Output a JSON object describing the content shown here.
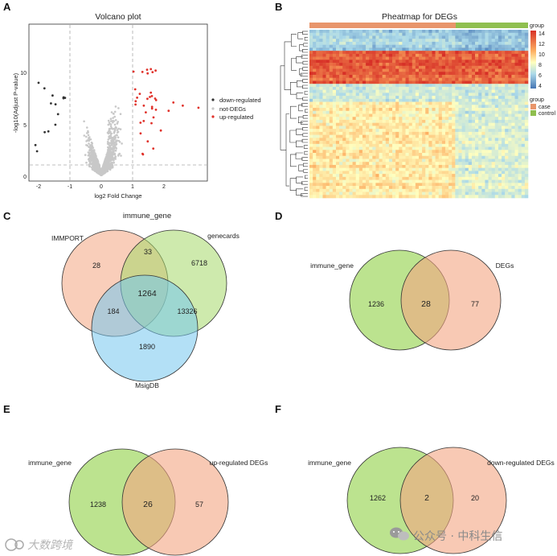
{
  "panels": {
    "a": {
      "label": "A"
    },
    "b": {
      "label": "B"
    },
    "c": {
      "label": "C"
    },
    "d": {
      "label": "D"
    },
    "e": {
      "label": "E"
    },
    "f": {
      "label": "F"
    }
  },
  "volcano": {
    "title": "Volcano plot",
    "xlabel": "log2 Fold Change",
    "ylabel": "-log10(Adjust P-value)",
    "xticks": [
      "-2",
      "-1",
      "0",
      "1",
      "2"
    ],
    "yticks": [
      "0",
      "5",
      "10"
    ],
    "legend": [
      "down-regulated",
      "not-DEGs",
      "up-regulated"
    ],
    "colors": {
      "down": "#333333",
      "not": "#c8c8c8",
      "up": "#e0322b"
    }
  },
  "heatmap": {
    "title": "Pheatmap for DEGs",
    "legend_title": "group",
    "scale_ticks": [
      "14",
      "12",
      "10",
      "8",
      "6",
      "4"
    ],
    "group_legend_title": "group",
    "groups": [
      "case",
      "control"
    ],
    "colors": {
      "case": "#e8956b",
      "control": "#8fbf4f",
      "high": "#d73027",
      "mid": "#ffffbf",
      "low": "#4575b4"
    }
  },
  "venn_c": {
    "title": "immune_gene",
    "sets": [
      "IMMPORT",
      "genecards",
      "MsigDB"
    ],
    "values": {
      "immport_only": "28",
      "immport_genecards": "33",
      "genecards_only": "6718",
      "all_three": "1264",
      "immport_msigdb": "184",
      "genecards_msigdb": "13326",
      "msigdb_only": "1890"
    },
    "colors": {
      "immport": "#f4a582",
      "genecards": "#a6d96a",
      "msigdb": "#74c6ee"
    }
  },
  "venn_d": {
    "left_label": "immune_gene",
    "right_label": "DEGs",
    "left": "1236",
    "overlap": "28",
    "right": "77"
  },
  "venn_e": {
    "left_label": "immune_gene",
    "right_label": "up-regulated DEGs",
    "left": "1238",
    "overlap": "26",
    "right": "57"
  },
  "venn_f": {
    "left_label": "immune_gene",
    "right_label": "down-regulated DEGs",
    "left": "1262",
    "overlap": "2",
    "right": "20"
  },
  "venn_colors": {
    "green": "#a6d96a",
    "orange": "#f4a582"
  },
  "watermark": {
    "left": "大数跨境",
    "right": "公众号 · 中科生信"
  }
}
